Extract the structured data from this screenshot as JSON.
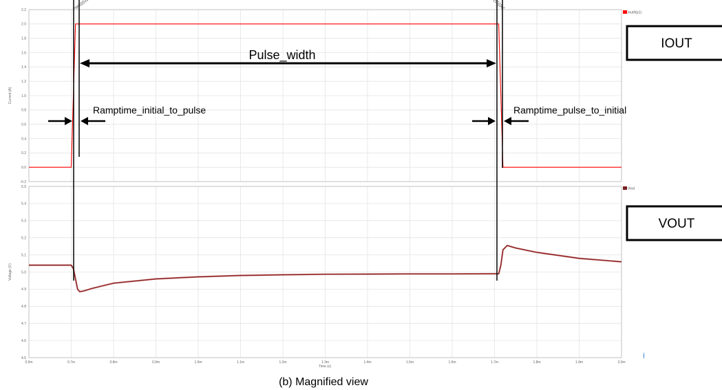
{
  "chart_data": [
    {
      "type": "line",
      "name": "current-panel",
      "ylabel": "Current (A)",
      "ylim": [
        -0.2,
        2.2
      ],
      "yticks": [
        "2.2",
        "2.0",
        "1.8",
        "1.6",
        "1.4",
        "1.2",
        "1.0",
        "0.8",
        "0.6",
        "0.4",
        "0.2",
        "0.0",
        "-0.2"
      ],
      "xlim": [
        0.6,
        2.0
      ],
      "grid": true,
      "legend_position": "top-right",
      "series": [
        {
          "name": "Iout/I(p1)",
          "color": "#ff0000",
          "x": [
            0.6,
            0.7,
            0.71,
            1.71,
            1.72,
            2.0
          ],
          "y": [
            0.0,
            0.0,
            2.0,
            2.0,
            0.0,
            0.0
          ]
        }
      ]
    },
    {
      "type": "line",
      "name": "voltage-panel",
      "ylabel": "Voltage (V)",
      "xlabel": "Time (s)",
      "ylim": [
        4.5,
        5.5
      ],
      "yticks": [
        "5.5",
        "5.4",
        "5.3",
        "5.2",
        "5.1",
        "5.0",
        "4.9",
        "4.8",
        "4.7",
        "4.6",
        "4.5"
      ],
      "xlim": [
        0.6,
        2.0
      ],
      "xticks": [
        "0.6m",
        "0.7m",
        "0.8m",
        "0.9m",
        "1.0m",
        "1.1m",
        "1.2m",
        "1.3m",
        "1.4m",
        "1.5m",
        "1.6m",
        "1.7m",
        "1.8m",
        "1.9m",
        "2.0m"
      ],
      "grid": true,
      "legend_position": "top-right",
      "series": [
        {
          "name": "Vout",
          "color": "#7a2020",
          "x": [
            0.6,
            0.65,
            0.7,
            0.705,
            0.71,
            0.715,
            0.72,
            0.73,
            0.75,
            0.8,
            0.9,
            1.0,
            1.1,
            1.2,
            1.3,
            1.4,
            1.5,
            1.6,
            1.7,
            1.71,
            1.715,
            1.72,
            1.73,
            1.75,
            1.8,
            1.9,
            2.0
          ],
          "y": [
            5.04,
            5.04,
            5.04,
            5.02,
            4.96,
            4.9,
            4.885,
            4.89,
            4.905,
            4.935,
            4.96,
            4.972,
            4.98,
            4.984,
            4.987,
            4.988,
            4.989,
            4.989,
            4.99,
            4.99,
            5.04,
            5.13,
            5.155,
            5.14,
            5.115,
            5.08,
            5.06
          ]
        }
      ]
    }
  ],
  "annotations": {
    "pulse_width": "Pulse_width",
    "ramp_up": "Ramptime_initial_to_pulse",
    "ramp_down": "Ramptime_pulse_to_initial",
    "iout_box": "IOUT",
    "vout_box": "VOUT",
    "caption": "(b) Magnified view"
  },
  "colors": {
    "iout_line": "#ff0000",
    "vout_line": "#7a2020",
    "vout_line_overlay": "#c86464",
    "annotation": "#000000",
    "corner_badge": "#1e6fc8"
  }
}
